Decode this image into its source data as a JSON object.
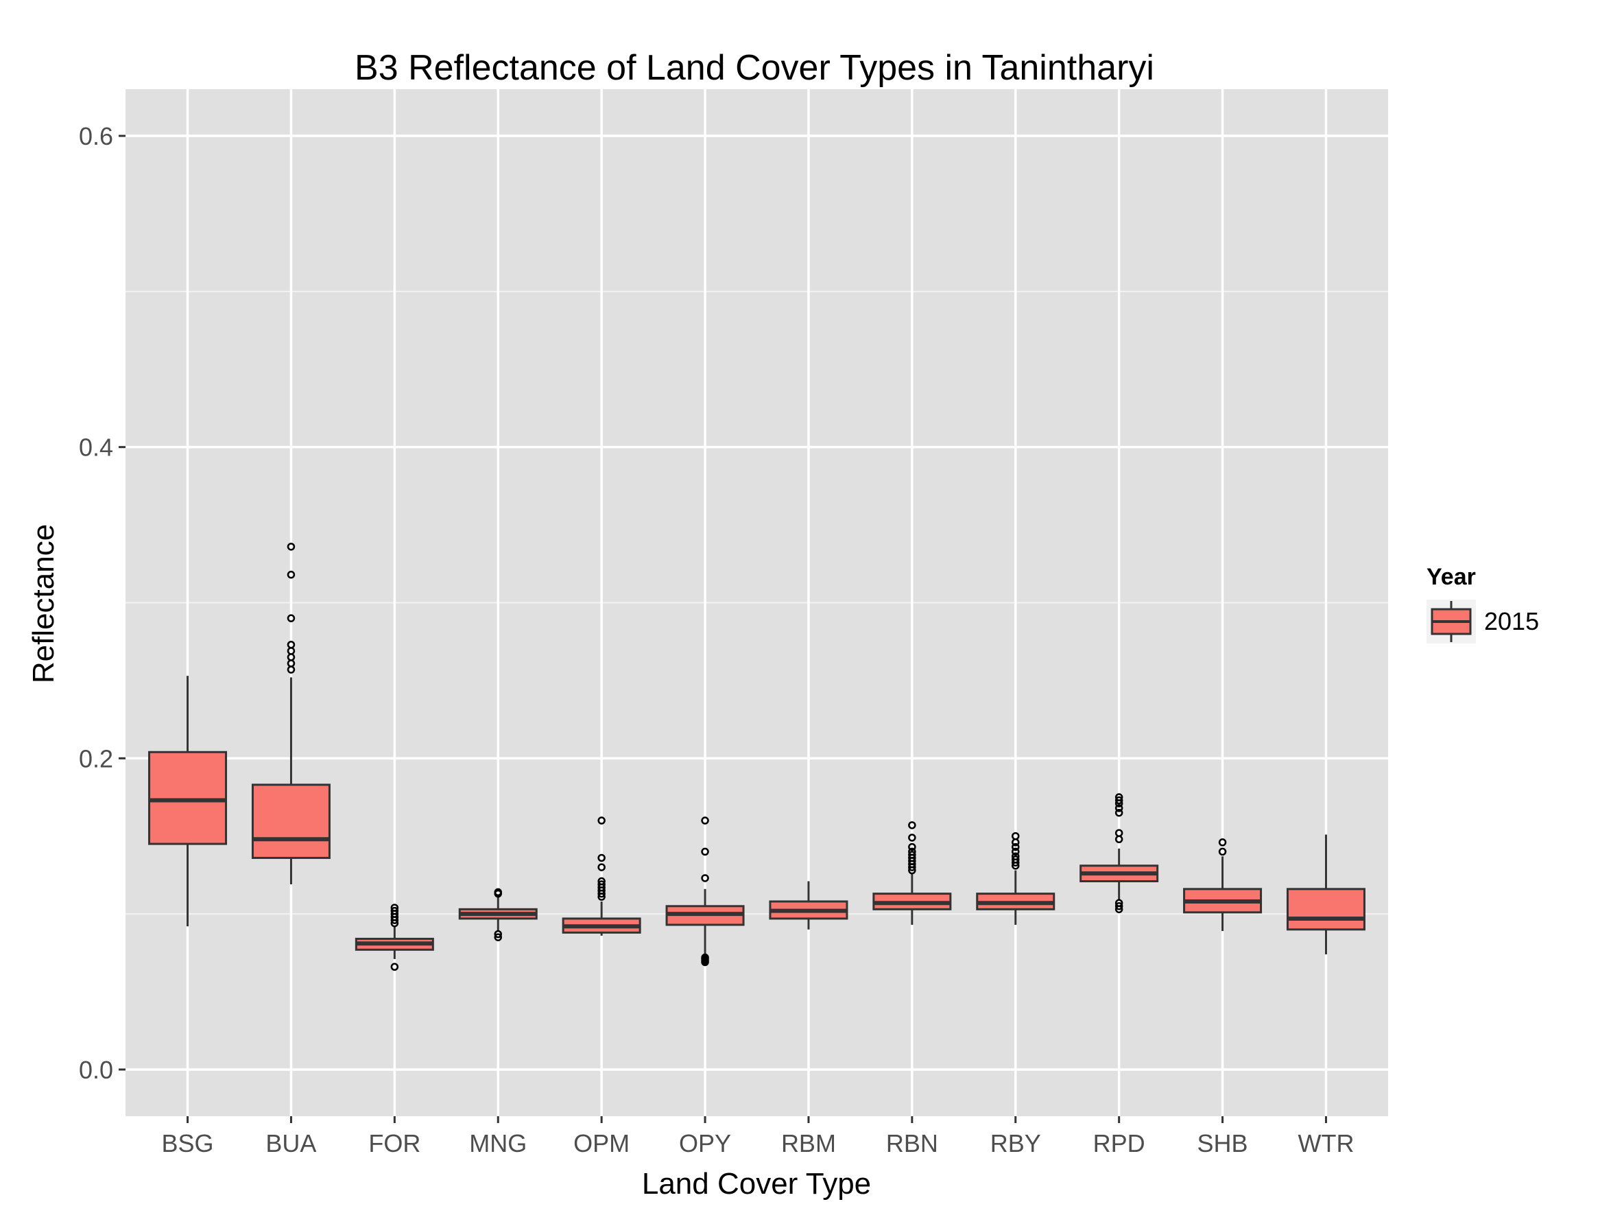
{
  "chart_data": {
    "type": "box",
    "title": "B3 Reflectance of Land Cover Types in Tanintharyi",
    "xlabel": "Land Cover Type",
    "ylabel": "Reflectance",
    "ylim": [
      -0.03,
      0.63
    ],
    "yticks": [
      0.0,
      0.2,
      0.4,
      0.6
    ],
    "ytick_labels": [
      "0.0",
      "0.2",
      "0.4",
      "0.6"
    ],
    "grid": true,
    "legend": {
      "title": "Year",
      "position": "right",
      "entries": [
        "2015"
      ]
    },
    "colors": {
      "box_fill": "#F8766D",
      "panel": "#E0E0E0",
      "grid": "#FFFFFF",
      "line": "#333333"
    },
    "categories": [
      "BSG",
      "BUA",
      "FOR",
      "MNG",
      "OPM",
      "OPY",
      "RBM",
      "RBN",
      "RBY",
      "RPD",
      "SHB",
      "WTR"
    ],
    "series": [
      {
        "name": "2015",
        "boxes": [
          {
            "min": 0.092,
            "q1": 0.145,
            "median": 0.173,
            "q3": 0.204,
            "max": 0.253,
            "outliers": []
          },
          {
            "min": 0.119,
            "q1": 0.136,
            "median": 0.148,
            "q3": 0.183,
            "max": 0.252,
            "outliers": [
              0.257,
              0.261,
              0.265,
              0.269,
              0.273,
              0.29,
              0.318,
              0.336
            ]
          },
          {
            "min": 0.071,
            "q1": 0.077,
            "median": 0.081,
            "q3": 0.084,
            "max": 0.092,
            "outliers": [
              0.066,
              0.094,
              0.096,
              0.098,
              0.1,
              0.102,
              0.104
            ]
          },
          {
            "min": 0.089,
            "q1": 0.097,
            "median": 0.1,
            "q3": 0.103,
            "max": 0.111,
            "outliers": [
              0.085,
              0.087,
              0.113,
              0.114
            ]
          },
          {
            "min": 0.086,
            "q1": 0.088,
            "median": 0.092,
            "q3": 0.097,
            "max": 0.108,
            "outliers": [
              0.111,
              0.113,
              0.115,
              0.117,
              0.119,
              0.121,
              0.13,
              0.136,
              0.16
            ]
          },
          {
            "min": 0.074,
            "q1": 0.093,
            "median": 0.1,
            "q3": 0.105,
            "max": 0.116,
            "outliers": [
              0.069,
              0.07,
              0.071,
              0.072,
              0.123,
              0.14,
              0.16
            ]
          },
          {
            "min": 0.09,
            "q1": 0.097,
            "median": 0.102,
            "q3": 0.108,
            "max": 0.121,
            "outliers": []
          },
          {
            "min": 0.093,
            "q1": 0.103,
            "median": 0.107,
            "q3": 0.113,
            "max": 0.126,
            "outliers": [
              0.128,
              0.13,
              0.132,
              0.134,
              0.136,
              0.138,
              0.14,
              0.143,
              0.149,
              0.157
            ]
          },
          {
            "min": 0.093,
            "q1": 0.103,
            "median": 0.107,
            "q3": 0.113,
            "max": 0.128,
            "outliers": [
              0.131,
              0.133,
              0.135,
              0.137,
              0.14,
              0.143,
              0.146,
              0.15
            ]
          },
          {
            "min": 0.109,
            "q1": 0.121,
            "median": 0.126,
            "q3": 0.131,
            "max": 0.142,
            "outliers": [
              0.103,
              0.105,
              0.107,
              0.148,
              0.152,
              0.165,
              0.168,
              0.171,
              0.173,
              0.175
            ]
          },
          {
            "min": 0.089,
            "q1": 0.101,
            "median": 0.108,
            "q3": 0.116,
            "max": 0.137,
            "outliers": [
              0.14,
              0.146
            ]
          },
          {
            "min": 0.074,
            "q1": 0.09,
            "median": 0.097,
            "q3": 0.116,
            "max": 0.151,
            "outliers": []
          }
        ]
      }
    ]
  }
}
